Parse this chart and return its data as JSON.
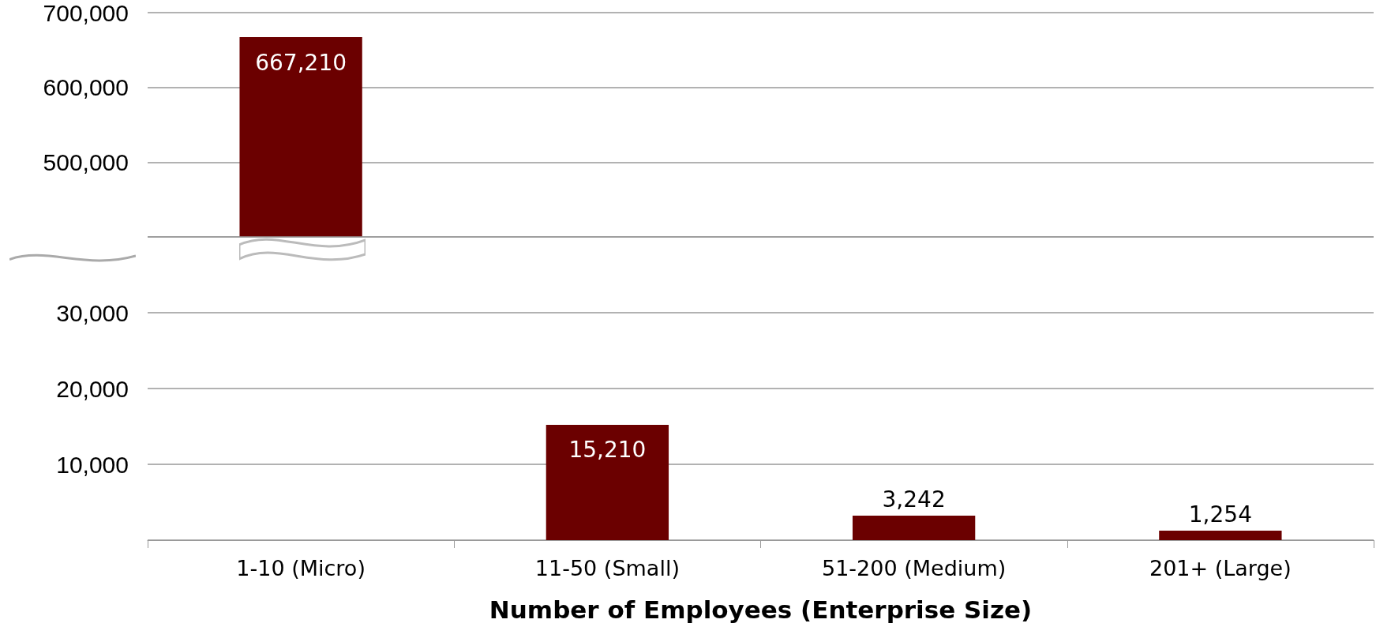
{
  "chart_data": [
    {
      "type": "bar",
      "categories": [
        null,
        null,
        null,
        null
      ],
      "values": [
        667210,
        null,
        null,
        null
      ],
      "value_labels": [
        "667,210",
        null,
        null,
        null
      ],
      "color": "#6b0000",
      "ylim": [
        400000,
        700000
      ],
      "yticks": [
        {
          "value": 400000,
          "label": null
        },
        {
          "value": 500000,
          "label": "500,000"
        },
        {
          "value": 600000,
          "label": "600,000"
        },
        {
          "value": 700000,
          "label": "700,000"
        }
      ],
      "grid": "y",
      "tick_labels": "y"
    },
    {
      "type": "bar",
      "categories": [
        "1-10 (Micro)",
        "11-50 (Small)",
        "51-200 (Medium)",
        "201+ (Large)"
      ],
      "values": [
        null,
        15210,
        3242,
        1254
      ],
      "value_labels": [
        null,
        "15,210",
        "3,242",
        "1,254"
      ],
      "color": "#6b0000",
      "xlabel": "Number of Employees (Enterprise Size)",
      "ylim": [
        0,
        40000
      ],
      "yticks": [
        {
          "value": 0,
          "label": null
        },
        {
          "value": 10000,
          "label": "10,000"
        },
        {
          "value": 20000,
          "label": "20,000"
        },
        {
          "value": 30000,
          "label": "30,000"
        },
        {
          "value": 40000,
          "label": null
        }
      ],
      "grid": "y"
    }
  ]
}
